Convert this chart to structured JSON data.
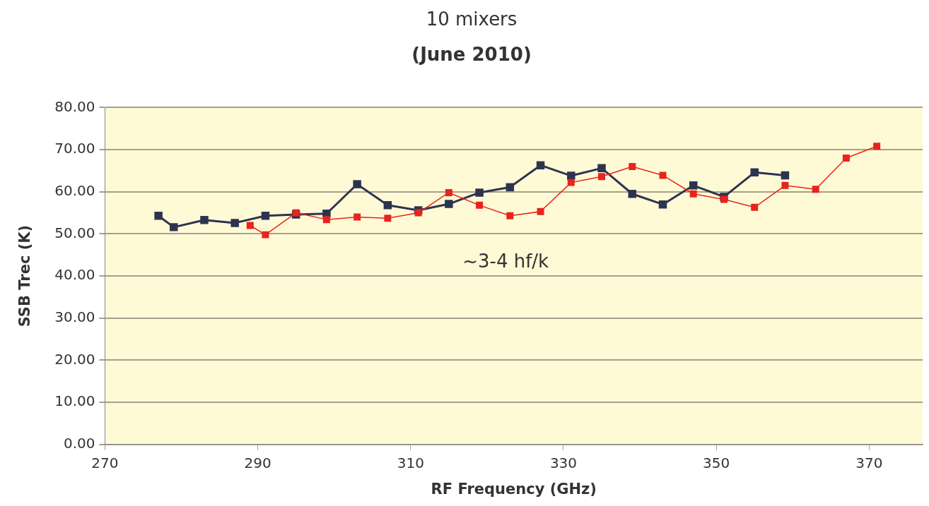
{
  "chart_data": {
    "type": "line",
    "title": "10 mixers",
    "subtitle": "(June 2010)",
    "xlabel": "RF Frequency (GHz)",
    "ylabel": "SSB Trec (K)",
    "series": [
      {
        "color": "#2e3350",
        "x": [
          277,
          279,
          283,
          287,
          291,
          295,
          299,
          303,
          307,
          311,
          315,
          319,
          323,
          327,
          331,
          335,
          339,
          343,
          347,
          351,
          355,
          359
        ],
        "values": [
          54.3,
          51.6,
          53.3,
          52.6,
          54.3,
          54.6,
          54.8,
          61.8,
          56.8,
          55.6,
          57.1,
          59.8,
          61.1,
          66.3,
          63.8,
          65.6,
          59.5,
          57.0,
          61.5,
          58.8,
          64.6,
          63.9
        ]
      },
      {
        "color": "#e8241c",
        "x": [
          289,
          291,
          295,
          299,
          303,
          307,
          311,
          315,
          319,
          323,
          327,
          331,
          335,
          339,
          343,
          347,
          351,
          355,
          359,
          363,
          367,
          371
        ],
        "values": [
          52.0,
          49.8,
          55.0,
          53.4,
          54.0,
          53.7,
          55.0,
          59.8,
          56.8,
          54.3,
          55.3,
          62.2,
          63.6,
          66.0,
          63.9,
          59.5,
          58.2,
          56.3,
          61.5,
          60.6,
          68.0,
          70.8
        ]
      }
    ],
    "xlim": [
      270,
      377
    ],
    "xticks": [
      270,
      290,
      310,
      330,
      350,
      370
    ],
    "ylim": [
      0,
      80
    ],
    "yticks": [
      {
        "value": 0,
        "label": "0.00"
      },
      {
        "value": 10,
        "label": "10.00"
      },
      {
        "value": 20,
        "label": "20.00"
      },
      {
        "value": 30,
        "label": "30.00"
      },
      {
        "value": 40,
        "label": "40.00"
      },
      {
        "value": 50,
        "label": "50.00"
      },
      {
        "value": 60,
        "label": "60.00"
      },
      {
        "value": 70,
        "label": "70.00"
      },
      {
        "value": 80,
        "label": "80.00"
      }
    ],
    "grid": "y",
    "legend": false,
    "marker": "square",
    "line_style": "solid",
    "annotations": [
      "~3-4 hf/k"
    ]
  }
}
